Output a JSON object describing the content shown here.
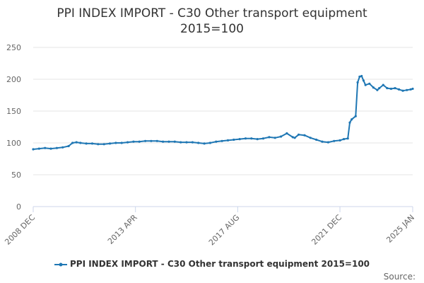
{
  "chart_data": {
    "type": "line",
    "title_line1": "PPI INDEX IMPORT - C30 Other transport equipment",
    "title_line2": "2015=100",
    "xlabel": "",
    "ylabel": "",
    "ylim": [
      0,
      250
    ],
    "yticks": [
      0,
      50,
      100,
      150,
      200,
      250
    ],
    "xlim": [
      "2008-12",
      "2025-01"
    ],
    "xticks": [
      {
        "date": "2008-12",
        "label": "2008 DEC"
      },
      {
        "date": "2013-04",
        "label": "2013 APR"
      },
      {
        "date": "2017-08",
        "label": "2017 AUG"
      },
      {
        "date": "2021-12",
        "label": "2021 DEC"
      },
      {
        "date": "2025-01",
        "label": "2025 JAN"
      }
    ],
    "grid": "horizontal",
    "legend_position": "bottom",
    "series": [
      {
        "name": "PPI INDEX IMPORT - C30 Other transport equipment 2015=100",
        "color": "#1f77b4",
        "points": [
          [
            "2008-12",
            90
          ],
          [
            "2009-03",
            91
          ],
          [
            "2009-06",
            92
          ],
          [
            "2009-09",
            91
          ],
          [
            "2009-12",
            92
          ],
          [
            "2010-03",
            93
          ],
          [
            "2010-06",
            95
          ],
          [
            "2010-08",
            100
          ],
          [
            "2010-10",
            101
          ],
          [
            "2010-12",
            100
          ],
          [
            "2011-03",
            99
          ],
          [
            "2011-06",
            99
          ],
          [
            "2011-09",
            98
          ],
          [
            "2011-12",
            98
          ],
          [
            "2012-03",
            99
          ],
          [
            "2012-06",
            100
          ],
          [
            "2012-09",
            100
          ],
          [
            "2012-12",
            101
          ],
          [
            "2013-03",
            102
          ],
          [
            "2013-06",
            102
          ],
          [
            "2013-09",
            103
          ],
          [
            "2013-12",
            103
          ],
          [
            "2014-03",
            103
          ],
          [
            "2014-06",
            102
          ],
          [
            "2014-09",
            102
          ],
          [
            "2014-12",
            102
          ],
          [
            "2015-03",
            101
          ],
          [
            "2015-06",
            101
          ],
          [
            "2015-09",
            101
          ],
          [
            "2015-12",
            100
          ],
          [
            "2016-03",
            99
          ],
          [
            "2016-06",
            100
          ],
          [
            "2016-09",
            102
          ],
          [
            "2016-12",
            103
          ],
          [
            "2017-03",
            104
          ],
          [
            "2017-06",
            105
          ],
          [
            "2017-09",
            106
          ],
          [
            "2017-12",
            107
          ],
          [
            "2018-03",
            107
          ],
          [
            "2018-06",
            106
          ],
          [
            "2018-09",
            107
          ],
          [
            "2018-12",
            109
          ],
          [
            "2019-03",
            108
          ],
          [
            "2019-06",
            110
          ],
          [
            "2019-09",
            115
          ],
          [
            "2019-12",
            109
          ],
          [
            "2020-01",
            108
          ],
          [
            "2020-03",
            113
          ],
          [
            "2020-06",
            112
          ],
          [
            "2020-09",
            108
          ],
          [
            "2020-12",
            105
          ],
          [
            "2021-03",
            102
          ],
          [
            "2021-06",
            101
          ],
          [
            "2021-09",
            103
          ],
          [
            "2021-12",
            104
          ],
          [
            "2022-02",
            106
          ],
          [
            "2022-04",
            107
          ],
          [
            "2022-05",
            132
          ],
          [
            "2022-06",
            137
          ],
          [
            "2022-08",
            142
          ],
          [
            "2022-09",
            195
          ],
          [
            "2022-10",
            204
          ],
          [
            "2022-11",
            205
          ],
          [
            "2022-12",
            198
          ],
          [
            "2023-01",
            191
          ],
          [
            "2023-03",
            193
          ],
          [
            "2023-05",
            187
          ],
          [
            "2023-07",
            183
          ],
          [
            "2023-08",
            186
          ],
          [
            "2023-10",
            191
          ],
          [
            "2023-12",
            186
          ],
          [
            "2024-02",
            185
          ],
          [
            "2024-04",
            186
          ],
          [
            "2024-06",
            184
          ],
          [
            "2024-08",
            182
          ],
          [
            "2024-10",
            183
          ],
          [
            "2024-12",
            184
          ],
          [
            "2025-01",
            185
          ]
        ]
      }
    ]
  },
  "source_label": "Source:"
}
